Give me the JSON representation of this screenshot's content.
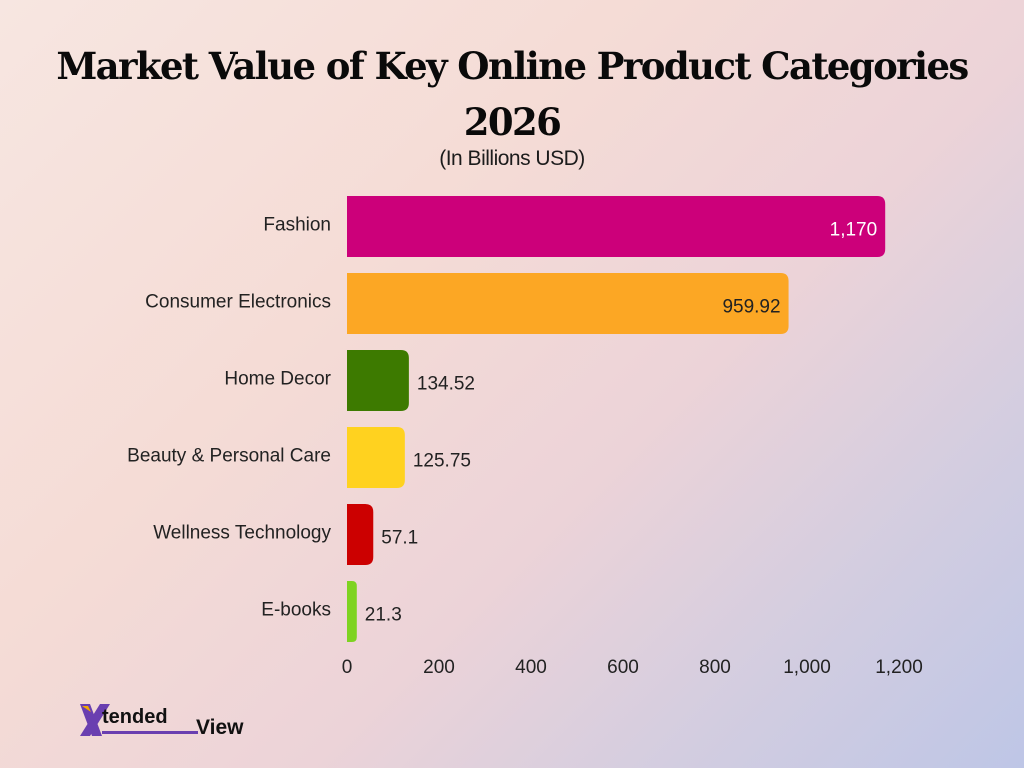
{
  "header": {
    "title": "Market Value of Key Online Product Categories 2026",
    "subtitle": "(In Billions USD)"
  },
  "logo": {
    "letter": "X",
    "word1": "tended",
    "word2": "View",
    "colors": {
      "mark": "#6a3fb0",
      "mark_accent": "#f2a900"
    }
  },
  "chart_data": {
    "type": "bar",
    "orientation": "horizontal",
    "categories": [
      "Fashion",
      "Consumer Electronics",
      "Home Decor",
      "Beauty & Personal Care",
      "Wellness Technology",
      "E-books"
    ],
    "values": [
      1170,
      959.92,
      134.52,
      125.75,
      57.1,
      21.3
    ],
    "value_labels": [
      "1,170",
      "959.92",
      "134.52",
      "125.75",
      "57.1",
      "21.3"
    ],
    "colors": [
      "#cc007a",
      "#fca724",
      "#3d7a00",
      "#ffd21f",
      "#cc0000",
      "#7ed321"
    ],
    "title": "Market Value of Key Online Product Categories 2026",
    "subtitle": "(In Billions USD)",
    "xlabel": "",
    "ylabel": "",
    "xlim": [
      0,
      1200
    ],
    "x_ticks": [
      0,
      200,
      400,
      600,
      800,
      1000,
      1200
    ],
    "x_tick_labels": [
      "0",
      "200",
      "400",
      "600",
      "800",
      "1,000",
      "1,200"
    ],
    "grid": false,
    "legend": "none"
  }
}
